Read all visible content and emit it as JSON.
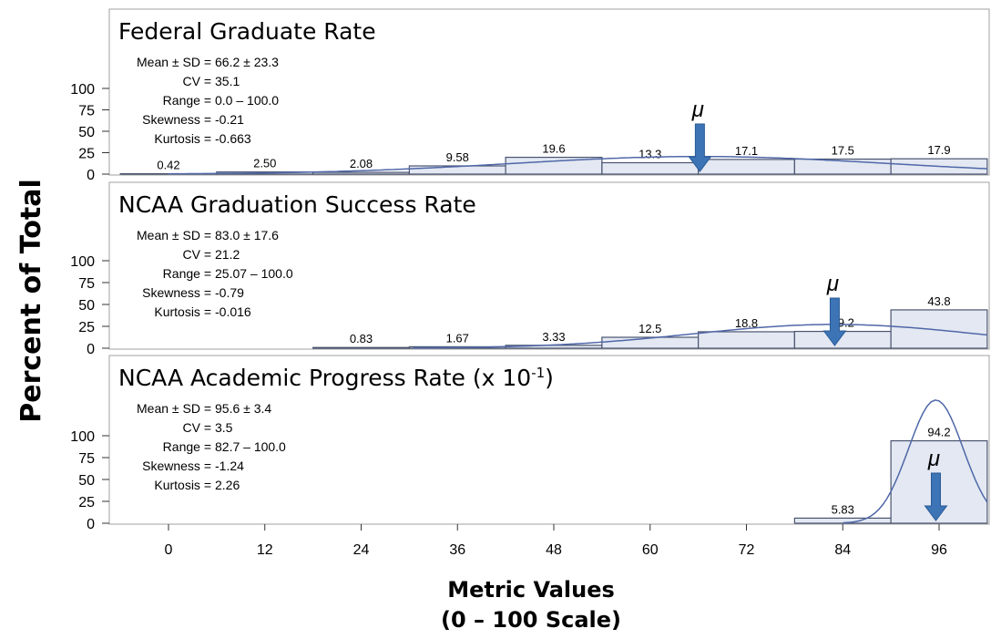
{
  "figure": {
    "y_axis_title": "Percent of Total",
    "x_axis_title_line1": "Metric Values",
    "x_axis_title_line2": "(0 – 100 Scale)",
    "x_ticks": [
      "0",
      "12",
      "24",
      "36",
      "48",
      "60",
      "72",
      "84",
      "96"
    ],
    "mu_label": "μ"
  },
  "colors": {
    "bar_fill": "#e3e8f2",
    "bar_stroke": "#4a5470",
    "curve": "#4f67a8",
    "arrow": "#3c74b6",
    "frame": "#a0a0a0",
    "text": "#000000"
  },
  "chart_data": [
    {
      "type": "bar",
      "title": "Federal Graduate Rate",
      "title_sup": "",
      "title_suffix": "",
      "stats": [
        {
          "label": "Mean ± SD =",
          "value": "66.2 ± 23.3"
        },
        {
          "label": "CV =",
          "value": "35.1"
        },
        {
          "label": "Range =",
          "value": "0.0 – 100.0"
        },
        {
          "label": "Skewness =",
          "value": "-0.21"
        },
        {
          "label": "Kurtosis =",
          "value": "-0.663"
        }
      ],
      "bin_width": 12,
      "bin_centers": [
        0,
        12,
        24,
        36,
        48,
        60,
        72,
        84,
        96
      ],
      "values": [
        0.42,
        2.5,
        2.08,
        9.58,
        19.6,
        13.3,
        17.1,
        17.5,
        17.9
      ],
      "value_labels": [
        "0.42",
        "2.50",
        "2.08",
        "9.58",
        "19.6",
        "13.3",
        "17.1",
        "17.5",
        "17.9"
      ],
      "mean": 66.2,
      "sd": 23.3,
      "y_ticks": [
        "0",
        "25",
        "50",
        "75",
        "100"
      ],
      "ylim": [
        0,
        100
      ]
    },
    {
      "type": "bar",
      "title": "NCAA Graduation Success Rate",
      "title_sup": "",
      "title_suffix": "",
      "stats": [
        {
          "label": "Mean ± SD =",
          "value": "83.0 ± 17.6"
        },
        {
          "label": "CV =",
          "value": "21.2"
        },
        {
          "label": "Range =",
          "value": "25.07 – 100.0"
        },
        {
          "label": "Skewness =",
          "value": "-0.79"
        },
        {
          "label": "Kurtosis =",
          "value": "-0.016"
        }
      ],
      "bin_width": 12,
      "bin_centers": [
        24,
        36,
        48,
        60,
        72,
        84,
        96
      ],
      "values": [
        0.83,
        1.67,
        3.33,
        12.5,
        18.8,
        19.2,
        43.8
      ],
      "value_labels": [
        "0.83",
        "1.67",
        "3.33",
        "12.5",
        "18.8",
        "19.2",
        "43.8"
      ],
      "mean": 83.0,
      "sd": 17.6,
      "y_ticks": [
        "0",
        "25",
        "50",
        "75",
        "100"
      ],
      "ylim": [
        0,
        100
      ]
    },
    {
      "type": "bar",
      "title": "NCAA Academic Progress Rate (x 10",
      "title_sup": "-1",
      "title_suffix": ")",
      "stats": [
        {
          "label": "Mean ± SD =",
          "value": "95.6 ± 3.4"
        },
        {
          "label": "CV =",
          "value": "3.5"
        },
        {
          "label": "Range =",
          "value": "82.7 – 100.0"
        },
        {
          "label": "Skewness =",
          "value": "-1.24"
        },
        {
          "label": "Kurtosis =",
          "value": "2.26"
        }
      ],
      "bin_width": 12,
      "bin_centers": [
        84,
        96
      ],
      "values": [
        5.83,
        94.2
      ],
      "value_labels": [
        "5.83",
        "94.2"
      ],
      "mean": 95.6,
      "sd": 3.4,
      "y_ticks": [
        "0",
        "25",
        "50",
        "75",
        "100"
      ],
      "ylim": [
        0,
        100
      ]
    }
  ]
}
